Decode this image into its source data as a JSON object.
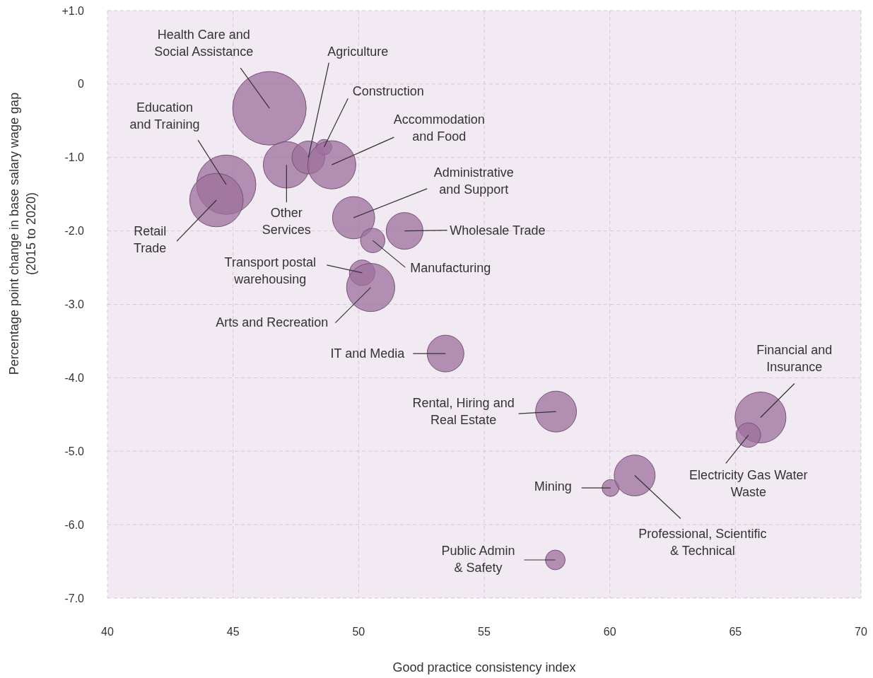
{
  "chart_data": {
    "type": "bubble",
    "xlabel": "Good practice consistency index",
    "ylabel": "Percentage point change in base salary wage gap\n(2015 to 2020)",
    "xlim": [
      40,
      70
    ],
    "xticks": [
      40,
      45,
      50,
      55,
      60,
      65,
      70
    ],
    "ylim": [
      -7,
      1
    ],
    "yticks": [
      {
        "value": 1,
        "label": "+1.0"
      },
      0,
      {
        "value": -1,
        "label": "-1.0"
      },
      {
        "value": -2,
        "label": "-2.0"
      },
      {
        "value": -3,
        "label": "-3.0"
      },
      {
        "value": -4,
        "label": "-4.0"
      },
      {
        "value": -5,
        "label": "-5.0"
      },
      {
        "value": -6,
        "label": "-6.0"
      },
      {
        "value": -7,
        "label": "-7.0"
      }
    ],
    "grid": true,
    "series": [
      {
        "color": "#9c6f9c",
        "x": [
          46.45,
          44.73,
          44.34,
          47.13,
          48.0,
          48.62,
          48.93,
          49.8,
          51.83,
          50.56,
          50.14,
          50.48,
          53.46,
          57.86,
          66.0,
          65.52,
          60.03,
          60.99,
          57.83
        ],
        "values": [
          -0.33,
          -1.37,
          -1.58,
          -1.1,
          -1.0,
          -0.86,
          -1.1,
          -1.82,
          -2.0,
          -2.13,
          -2.57,
          -2.77,
          -3.67,
          -4.46,
          -4.54,
          -4.78,
          -5.5,
          -5.33,
          -6.48
        ],
        "sizes": [
          1,
          0.65,
          0.53,
          0.4,
          0.2,
          0.045,
          0.43,
          0.33,
          0.25,
          0.11,
          0.12,
          0.43,
          0.25,
          0.31,
          0.48,
          0.11,
          0.053,
          0.31,
          0.072
        ]
      }
    ],
    "annotations": [
      {
        "text": "Health Care and\nSocial Assistance",
        "x": 46.45,
        "y": -0.33
      },
      {
        "text": "Education\nand Training",
        "x": 44.73,
        "y": -1.37
      },
      {
        "text": "Retail\nTrade",
        "x": 44.34,
        "y": -1.58
      },
      {
        "text": "Other\nServices",
        "x": 47.13,
        "y": -1.1
      },
      {
        "text": "Agriculture",
        "x": 48.0,
        "y": -1.0
      },
      {
        "text": "Construction",
        "x": 48.62,
        "y": -0.86
      },
      {
        "text": "Accommodation\nand Food",
        "x": 48.93,
        "y": -1.1
      },
      {
        "text": "Administrative\nand Support",
        "x": 49.8,
        "y": -1.82
      },
      {
        "text": "Wholesale Trade",
        "x": 51.83,
        "y": -2.0
      },
      {
        "text": "Manufacturing",
        "x": 50.56,
        "y": -2.13
      },
      {
        "text": "Transport postal\nwarehousing",
        "x": 50.14,
        "y": -2.57
      },
      {
        "text": "Arts and Recreation",
        "x": 50.48,
        "y": -2.77
      },
      {
        "text": "IT and Media",
        "x": 53.46,
        "y": -3.67
      },
      {
        "text": "Rental, Hiring and\nReal Estate",
        "x": 57.86,
        "y": -4.46
      },
      {
        "text": "Financial and\nInsurance",
        "x": 66.0,
        "y": -4.54
      },
      {
        "text": "Electricity Gas Water\nWaste",
        "x": 65.52,
        "y": -4.78
      },
      {
        "text": "Mining",
        "x": 60.03,
        "y": -5.5
      },
      {
        "text": "Professional, Scientific\n& Technical",
        "x": 60.99,
        "y": -5.33
      },
      {
        "text": "Public Admin\n& Safety",
        "x": 57.83,
        "y": -6.48
      }
    ]
  }
}
